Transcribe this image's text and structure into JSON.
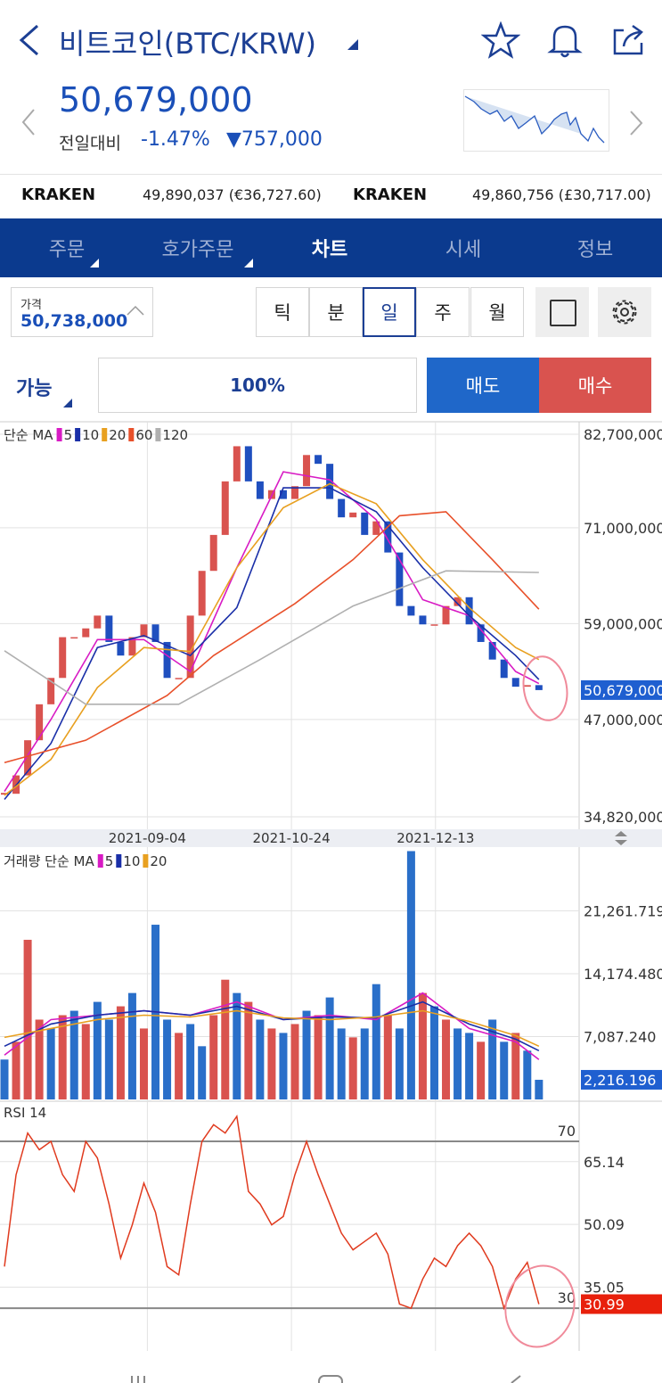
{
  "header": {
    "title": "비트코인(BTC/KRW)",
    "price": "50,679,000",
    "change_label": "전일대비",
    "change_pct": "-1.47%",
    "change_amount": "▼757,000"
  },
  "exchanges": [
    {
      "name": "KRAKEN",
      "price": "49,890,037 (€36,727.60)"
    },
    {
      "name": "KRAKEN",
      "price": "49,860,756 (£30,717.00)"
    }
  ],
  "tabs": [
    "주문",
    "호가주문",
    "차트",
    "시세",
    "정보"
  ],
  "price_box": {
    "label": "가격",
    "value": "50,738,000"
  },
  "periods": [
    "틱",
    "분",
    "일",
    "주",
    "월"
  ],
  "order_row": {
    "available": "가능",
    "ratio": "100%",
    "sell": "매도",
    "buy": "매수"
  },
  "chart_data": [
    {
      "type": "candlestick",
      "legend_title": "단순 MA",
      "values": [
        37700000,
        40000000,
        44400000,
        48900000,
        52200000,
        57300000,
        57300000,
        58400000,
        60000000,
        56700000,
        55000000,
        57300000,
        58900000,
        56700000,
        52200000,
        52200000,
        60000000,
        65600000,
        70100000,
        76800000,
        81200000,
        76800000,
        74600000,
        75700000,
        74600000,
        76200000,
        80100000,
        79000000,
        74600000,
        72300000,
        72900000,
        70100000,
        71800000,
        67900000,
        61200000,
        60000000,
        58900000,
        58900000,
        61200000,
        62300000,
        58900000,
        56700000,
        54500000,
        52200000,
        51100000,
        51300000,
        50679000
      ],
      "value_labels": [
        null,
        null,
        null,
        null,
        null,
        null,
        null,
        null,
        null,
        null,
        null,
        null,
        null,
        null,
        null,
        null,
        null,
        null,
        null,
        null,
        null,
        null,
        null,
        null,
        null,
        null,
        null,
        null,
        null,
        null,
        null,
        null,
        null,
        null,
        null,
        null,
        null,
        null,
        null,
        null,
        null,
        null,
        null,
        null,
        null,
        null,
        "50,679,000"
      ],
      "up_color": "#d9534f",
      "down_color": "#1f4fbf",
      "series": [
        {
          "name": "5",
          "color": "#d81bc4",
          "x": [
            0,
            4,
            8,
            12,
            16,
            20,
            24,
            28,
            32,
            36,
            40,
            44,
            46
          ],
          "values": [
            38000000,
            47000000,
            57000000,
            57000000,
            53000000,
            66000000,
            78000000,
            77000000,
            72000000,
            62000000,
            60000000,
            53000000,
            51500000
          ]
        },
        {
          "name": "10",
          "color": "#1a2fa8",
          "x": [
            0,
            4,
            8,
            12,
            16,
            20,
            24,
            28,
            32,
            36,
            40,
            44,
            46
          ],
          "values": [
            37000000,
            44000000,
            56000000,
            57500000,
            55000000,
            61000000,
            76000000,
            76000000,
            73000000,
            66000000,
            60000000,
            55000000,
            52000000
          ]
        },
        {
          "name": "20",
          "color": "#e8a020",
          "x": [
            0,
            4,
            8,
            12,
            16,
            20,
            24,
            28,
            32,
            36,
            40,
            44,
            46
          ],
          "values": [
            37500000,
            42000000,
            51000000,
            56000000,
            55500000,
            66000000,
            73500000,
            76500000,
            74000000,
            67000000,
            61000000,
            56000000,
            54500000
          ]
        },
        {
          "name": "60",
          "color": "#e8502a",
          "x": [
            0,
            7,
            14,
            18,
            25,
            30,
            34,
            38,
            42,
            46
          ],
          "values": [
            41600000,
            44400000,
            50000000,
            55000000,
            61500000,
            67000000,
            72500000,
            73000000,
            67000000,
            60800000
          ]
        },
        {
          "name": "120",
          "color": "#b0b0b0",
          "x": [
            0,
            7,
            15,
            22,
            30,
            38,
            46
          ],
          "values": [
            55600000,
            48900000,
            48900000,
            54500000,
            61200000,
            65600000,
            65400000
          ]
        }
      ],
      "ylim": [
        34820000,
        82700000
      ],
      "yticks": [
        {
          "value": 82700000,
          "label": "82,700,000"
        },
        {
          "value": 71000000,
          "label": "71,000,000"
        },
        {
          "value": 59000000,
          "label": "59,000,000"
        },
        {
          "value": 47000000,
          "label": "47,000,000"
        },
        {
          "value": 34820000,
          "label": "34,820,000"
        }
      ],
      "xticks": [
        {
          "value": 12.3,
          "label": "2021-09-04"
        },
        {
          "value": 24.7,
          "label": "2021-10-24"
        },
        {
          "value": 37.1,
          "label": "2021-12-13"
        }
      ],
      "grid": true
    },
    {
      "type": "bar",
      "legend_title": "거래량 단순 MA",
      "values": [
        4500,
        6500,
        18000,
        9000,
        8000,
        9500,
        10000,
        8500,
        11000,
        9000,
        10500,
        12000,
        8000,
        19700,
        9000,
        7500,
        8500,
        6000,
        9500,
        13500,
        12000,
        11000,
        9000,
        8000,
        7500,
        8500,
        10000,
        9500,
        11500,
        8000,
        7000,
        8000,
        13000,
        9500,
        8000,
        28000,
        12000,
        10500,
        9000,
        8000,
        7500,
        6500,
        9000,
        6500,
        7500,
        5500,
        2216.196
      ],
      "value_labels": [
        null,
        null,
        null,
        null,
        null,
        null,
        null,
        null,
        null,
        null,
        null,
        null,
        null,
        null,
        null,
        null,
        null,
        null,
        null,
        null,
        null,
        null,
        null,
        null,
        null,
        null,
        null,
        null,
        null,
        null,
        null,
        null,
        null,
        null,
        null,
        null,
        null,
        null,
        null,
        null,
        null,
        null,
        null,
        null,
        null,
        null,
        "2,216.196"
      ],
      "colors": [
        "#2a6fc9",
        "#d9534f",
        "#d9534f",
        "#d9534f",
        "#2a6fc9",
        "#d9534f",
        "#2a6fc9",
        "#d9534f",
        "#2a6fc9",
        "#2a6fc9",
        "#d9534f",
        "#2a6fc9",
        "#d9534f",
        "#2a6fc9",
        "#2a6fc9",
        "#d9534f",
        "#2a6fc9",
        "#2a6fc9",
        "#d9534f",
        "#d9534f",
        "#2a6fc9",
        "#d9534f",
        "#2a6fc9",
        "#d9534f",
        "#2a6fc9",
        "#d9534f",
        "#2a6fc9",
        "#d9534f",
        "#2a6fc9",
        "#2a6fc9",
        "#d9534f",
        "#2a6fc9",
        "#2a6fc9",
        "#d9534f",
        "#2a6fc9",
        "#2a6fc9",
        "#d9534f",
        "#2a6fc9",
        "#d9534f",
        "#2a6fc9",
        "#2a6fc9",
        "#d9534f",
        "#2a6fc9",
        "#2a6fc9",
        "#d9534f",
        "#2a6fc9",
        "#2a6fc9"
      ],
      "series": [
        {
          "name": "5",
          "color": "#d81bc4",
          "x": [
            0,
            4,
            8,
            12,
            16,
            20,
            24,
            28,
            32,
            36,
            40,
            44,
            46
          ],
          "values": [
            5000,
            9000,
            9500,
            10000,
            9500,
            11000,
            9000,
            9500,
            9000,
            12000,
            8000,
            6500,
            4500
          ]
        },
        {
          "name": "10",
          "color": "#1a2fa8",
          "x": [
            0,
            4,
            8,
            12,
            16,
            20,
            24,
            28,
            32,
            36,
            40,
            44,
            46
          ],
          "values": [
            6000,
            8500,
            9500,
            10000,
            9500,
            10500,
            9000,
            9300,
            9200,
            11000,
            8500,
            6800,
            5500
          ]
        },
        {
          "name": "20",
          "color": "#e8a020",
          "x": [
            0,
            4,
            8,
            12,
            16,
            20,
            24,
            28,
            32,
            36,
            40,
            44,
            46
          ],
          "values": [
            7000,
            8000,
            9000,
            9500,
            9300,
            10000,
            9200,
            9000,
            9300,
            10000,
            8800,
            7200,
            6000
          ]
        }
      ],
      "ylim": [
        0,
        28250
      ],
      "yticks": [
        {
          "value": 21261.719,
          "label": "21,261.719"
        },
        {
          "value": 14174.48,
          "label": "14,174.480"
        },
        {
          "value": 7087.24,
          "label": "7,087.240"
        }
      ],
      "grid": true
    },
    {
      "type": "line",
      "title": "RSI 14",
      "color": "#e03a1e",
      "values": [
        40,
        62,
        72,
        68,
        70,
        62,
        58,
        70,
        66,
        55,
        42,
        50,
        60,
        53,
        40,
        38,
        55,
        70,
        74,
        72,
        76,
        58,
        55,
        50,
        52,
        62,
        70,
        62,
        55,
        48,
        44,
        46,
        48,
        43,
        31,
        30,
        37,
        42,
        40,
        45,
        48,
        45,
        40,
        30,
        37,
        41,
        30.99
      ],
      "levels": [
        70,
        30
      ],
      "ylim": [
        20.2,
        79.2
      ],
      "yticks": [
        65.14,
        50.09,
        35.05
      ],
      "grid": true
    }
  ]
}
